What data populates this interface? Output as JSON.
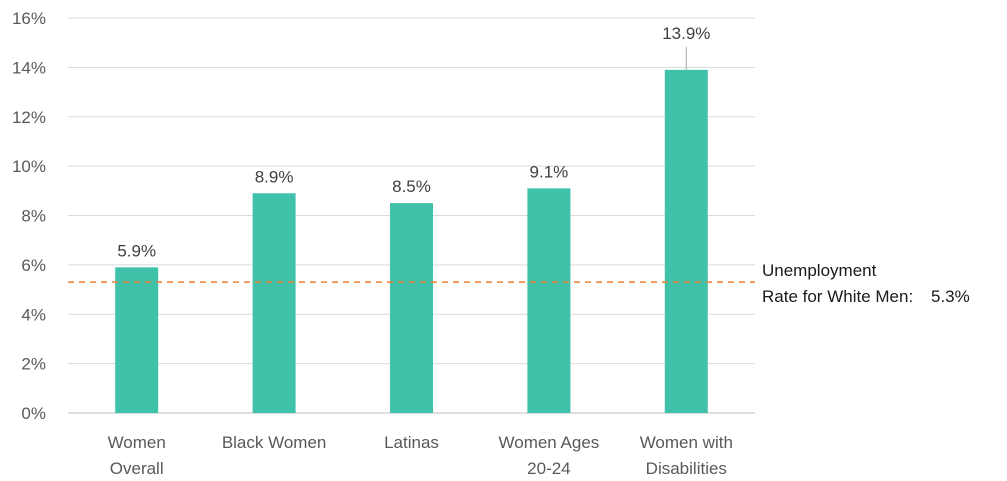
{
  "chart_data": {
    "type": "bar",
    "categories": [
      [
        "Women",
        "Overall"
      ],
      [
        "Black Women"
      ],
      [
        "Latinas"
      ],
      [
        "Women Ages",
        "20-24"
      ],
      [
        "Women with",
        "Disabilities"
      ]
    ],
    "values": [
      5.9,
      8.9,
      8.5,
      9.1,
      13.9
    ],
    "data_labels": [
      "5.9%",
      "8.9%",
      "8.5%",
      "9.1%",
      "13.9%"
    ],
    "y_ticks": [
      "0%",
      "2%",
      "4%",
      "6%",
      "8%",
      "10%",
      "12%",
      "14%",
      "16%"
    ],
    "ylim": [
      0,
      16
    ],
    "grid": true,
    "title": "",
    "xlabel": "",
    "ylabel": "",
    "bar_color": "#3fc1aa",
    "reference_line": {
      "value": 5.3,
      "style": "dashed",
      "color": "#ed7d31",
      "label_lines": [
        "Unemployment",
        "Rate for White Men:"
      ],
      "value_label": "5.3%"
    }
  }
}
